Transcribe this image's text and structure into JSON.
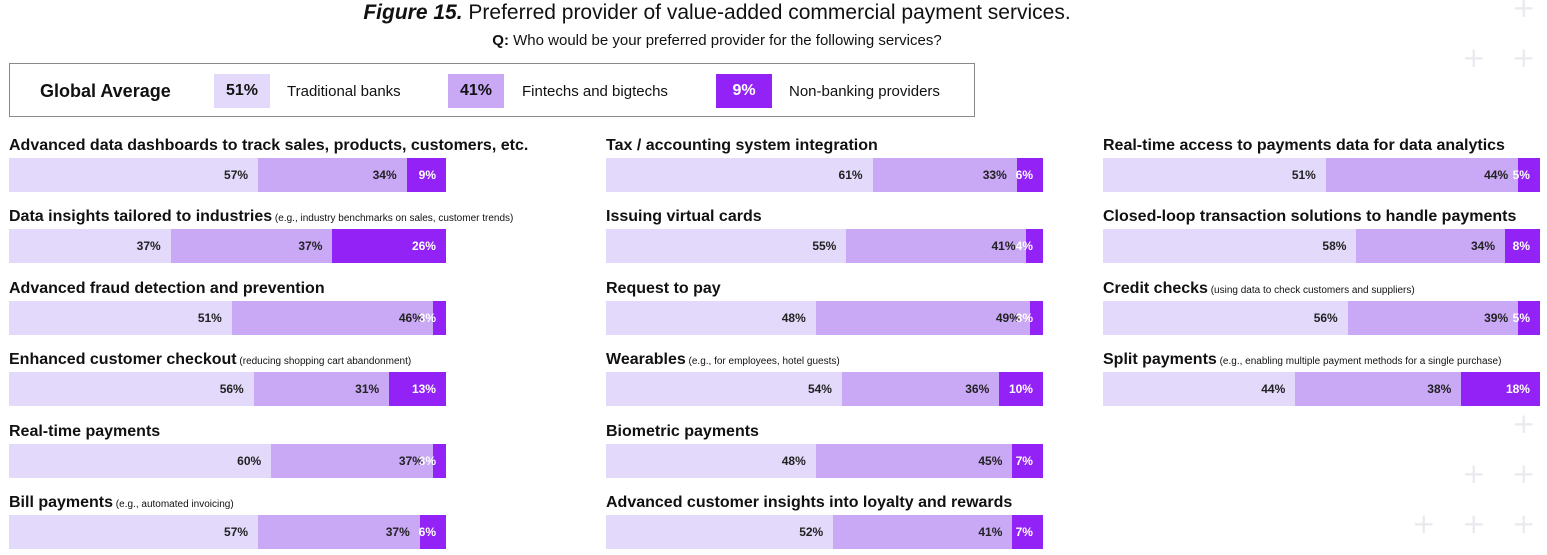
{
  "header": {
    "figure_label": "Figure 15.",
    "title": "Preferred provider of value-added commercial payment services.",
    "q_label": "Q:",
    "question": "Who would be your preferred provider for the following services?"
  },
  "legend": {
    "title": "Global Average",
    "items": [
      {
        "value": "51%",
        "label": "Traditional banks",
        "color": "#e2d9fb"
      },
      {
        "value": "41%",
        "label": "Fintechs and bigtechs",
        "color": "#c9a8f6"
      },
      {
        "value": "9%",
        "label": "Non-banking providers",
        "color": "#9222f6"
      }
    ]
  },
  "chart_data": {
    "type": "bar",
    "stacked": true,
    "orientation": "horizontal",
    "series_names": [
      "Traditional banks",
      "Fintechs and bigtechs",
      "Non-banking providers"
    ],
    "panels": [
      {
        "items": [
          {
            "label": "Advanced data dashboards to track sales, products, customers, etc.",
            "note": "",
            "values": [
              57,
              34,
              9
            ]
          },
          {
            "label": "Data insights tailored to industries",
            "note": "(e.g., industry benchmarks on sales, customer trends)",
            "values": [
              37,
              37,
              26
            ]
          },
          {
            "label": "Advanced fraud detection and prevention",
            "note": "",
            "values": [
              51,
              46,
              3
            ]
          },
          {
            "label": "Enhanced customer checkout",
            "note": "(reducing shopping cart abandonment)",
            "values": [
              56,
              31,
              13
            ]
          },
          {
            "label": "Real-time payments",
            "note": "",
            "values": [
              60,
              37,
              3
            ]
          },
          {
            "label": "Bill payments",
            "note": "(e.g., automated invoicing)",
            "values": [
              57,
              37,
              6
            ]
          }
        ]
      },
      {
        "items": [
          {
            "label": "Tax / accounting system integration",
            "note": "",
            "values": [
              61,
              33,
              6
            ]
          },
          {
            "label": "Issuing virtual cards",
            "note": "",
            "values": [
              55,
              41,
              4
            ]
          },
          {
            "label": "Request to pay",
            "note": "",
            "values": [
              48,
              49,
              3
            ]
          },
          {
            "label": "Wearables",
            "note": "(e.g., for employees, hotel guests)",
            "values": [
              54,
              36,
              10
            ]
          },
          {
            "label": "Biometric payments",
            "note": "",
            "values": [
              48,
              45,
              7
            ]
          },
          {
            "label": "Advanced customer insights into loyalty and rewards",
            "note": "",
            "values": [
              52,
              41,
              7
            ]
          }
        ]
      },
      {
        "items": [
          {
            "label": "Real-time access to payments data for data analytics",
            "note": "",
            "values": [
              51,
              44,
              5
            ]
          },
          {
            "label": "Closed-loop transaction solutions to handle payments",
            "note": "",
            "values": [
              58,
              34,
              8
            ]
          },
          {
            "label": "Credit checks",
            "note": "(using data to check customers and suppliers)",
            "values": [
              56,
              39,
              5
            ]
          },
          {
            "label": "Split payments",
            "note": "(e.g., enabling multiple payment methods for a single purchase)",
            "values": [
              44,
              38,
              18
            ]
          }
        ]
      }
    ]
  }
}
